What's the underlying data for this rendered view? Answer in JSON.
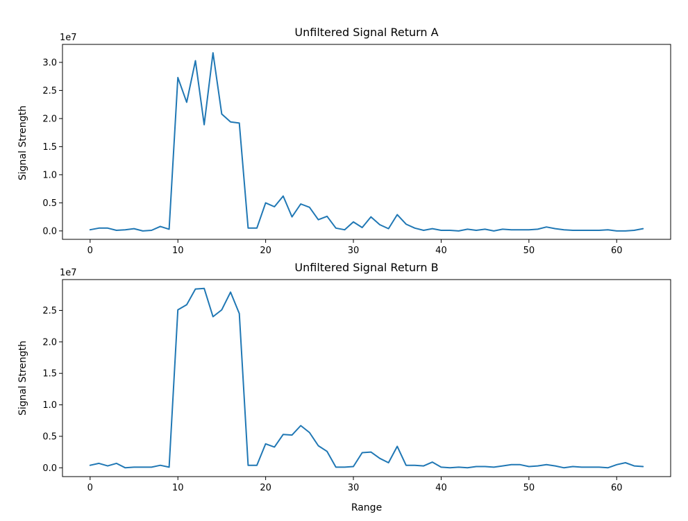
{
  "chart_data": [
    {
      "type": "line",
      "title": "Unfiltered Signal Return A",
      "xlabel": "",
      "ylabel": "Signal Strength",
      "offset_label": "1e7",
      "xlim": [
        -3.15,
        66.15
      ],
      "ylim": [
        -0.15,
        3.32
      ],
      "x_ticks": [
        0,
        10,
        20,
        30,
        40,
        50,
        60
      ],
      "x_tick_labels": [
        "0",
        "10",
        "20",
        "30",
        "40",
        "50",
        "60"
      ],
      "y_ticks": [
        0.0,
        0.5,
        1.0,
        1.5,
        2.0,
        2.5,
        3.0
      ],
      "y_tick_labels": [
        "0.0",
        "0.5",
        "1.0",
        "1.5",
        "2.0",
        "2.5",
        "3.0"
      ],
      "grid": false,
      "series": [
        {
          "color": "#1f77b4",
          "x": [
            0,
            1,
            2,
            3,
            4,
            5,
            6,
            7,
            8,
            9,
            10,
            11,
            12,
            13,
            14,
            15,
            16,
            17,
            18,
            19,
            20,
            21,
            22,
            23,
            24,
            25,
            26,
            27,
            28,
            29,
            30,
            31,
            32,
            33,
            34,
            35,
            36,
            37,
            38,
            39,
            40,
            41,
            42,
            43,
            44,
            45,
            46,
            47,
            48,
            49,
            50,
            51,
            52,
            53,
            54,
            55,
            56,
            57,
            58,
            59,
            60,
            61,
            62,
            63
          ],
          "values": [
            0.02,
            0.05,
            0.05,
            0.01,
            0.02,
            0.04,
            0.0,
            0.01,
            0.08,
            0.03,
            2.73,
            2.29,
            3.03,
            1.89,
            3.17,
            2.08,
            1.94,
            1.92,
            0.05,
            0.05,
            0.5,
            0.43,
            0.62,
            0.25,
            0.48,
            0.42,
            0.2,
            0.26,
            0.05,
            0.02,
            0.16,
            0.06,
            0.25,
            0.11,
            0.04,
            0.29,
            0.12,
            0.05,
            0.01,
            0.04,
            0.01,
            0.01,
            0.0,
            0.03,
            0.01,
            0.03,
            0.0,
            0.03,
            0.02,
            0.02,
            0.02,
            0.03,
            0.07,
            0.04,
            0.02,
            0.01,
            0.01,
            0.01,
            0.01,
            0.02,
            0.0,
            0.0,
            0.01,
            0.04
          ]
        }
      ]
    },
    {
      "type": "line",
      "title": "Unfiltered Signal Return B",
      "xlabel": "Range",
      "ylabel": "Signal Strength",
      "offset_label": "1e7",
      "xlim": [
        -3.15,
        66.15
      ],
      "ylim": [
        -0.14,
        2.99
      ],
      "x_ticks": [
        0,
        10,
        20,
        30,
        40,
        50,
        60
      ],
      "x_tick_labels": [
        "0",
        "10",
        "20",
        "30",
        "40",
        "50",
        "60"
      ],
      "y_ticks": [
        0.0,
        0.5,
        1.0,
        1.5,
        2.0,
        2.5
      ],
      "y_tick_labels": [
        "0.0",
        "0.5",
        "1.0",
        "1.5",
        "2.0",
        "2.5"
      ],
      "grid": false,
      "series": [
        {
          "color": "#1f77b4",
          "x": [
            0,
            1,
            2,
            3,
            4,
            5,
            6,
            7,
            8,
            9,
            10,
            11,
            12,
            13,
            14,
            15,
            16,
            17,
            18,
            19,
            20,
            21,
            22,
            23,
            24,
            25,
            26,
            27,
            28,
            29,
            30,
            31,
            32,
            33,
            34,
            35,
            36,
            37,
            38,
            39,
            40,
            41,
            42,
            43,
            44,
            45,
            46,
            47,
            48,
            49,
            50,
            51,
            52,
            53,
            54,
            55,
            56,
            57,
            58,
            59,
            60,
            61,
            62,
            63
          ],
          "values": [
            0.04,
            0.07,
            0.03,
            0.07,
            0.0,
            0.01,
            0.01,
            0.01,
            0.04,
            0.01,
            2.51,
            2.59,
            2.84,
            2.85,
            2.4,
            2.51,
            2.79,
            2.45,
            0.04,
            0.04,
            0.38,
            0.33,
            0.53,
            0.52,
            0.67,
            0.56,
            0.35,
            0.26,
            0.01,
            0.01,
            0.02,
            0.24,
            0.25,
            0.15,
            0.08,
            0.34,
            0.04,
            0.04,
            0.03,
            0.09,
            0.01,
            0.0,
            0.01,
            0.0,
            0.02,
            0.02,
            0.01,
            0.03,
            0.05,
            0.05,
            0.02,
            0.03,
            0.05,
            0.03,
            0.0,
            0.02,
            0.01,
            0.01,
            0.01,
            0.0,
            0.05,
            0.08,
            0.03,
            0.02
          ]
        }
      ]
    }
  ]
}
